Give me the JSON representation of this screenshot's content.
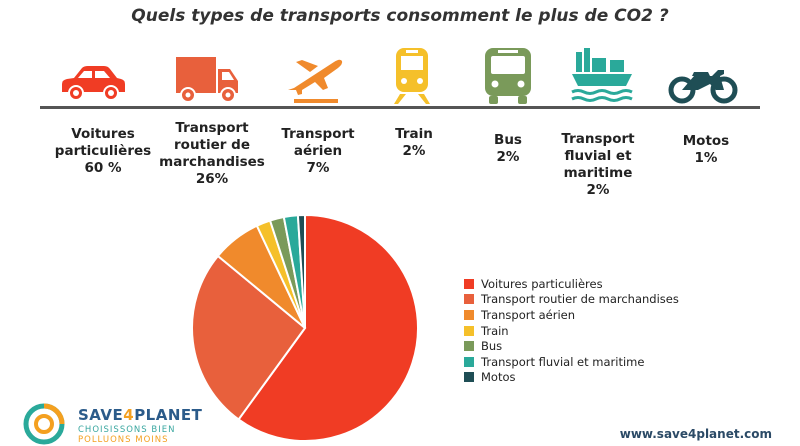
{
  "title": "Quels types de transports consomment le plus de CO2 ?",
  "categories": [
    {
      "lines": [
        "Voitures",
        "particulières",
        "60 %"
      ],
      "icon": "car-icon",
      "color": "#f03c24"
    },
    {
      "lines": [
        "Transport",
        "routier de",
        "marchandises",
        "26%"
      ],
      "icon": "truck-icon",
      "color": "#e8603c"
    },
    {
      "lines": [
        "Transport",
        "aérien",
        "7%"
      ],
      "icon": "airplane-icon",
      "color": "#f08a2c"
    },
    {
      "lines": [
        "Train",
        "2%"
      ],
      "icon": "train-icon",
      "color": "#f5c02a"
    },
    {
      "lines": [
        "Bus",
        "2%"
      ],
      "icon": "bus-icon",
      "color": "#7a9a5a"
    },
    {
      "lines": [
        "Transport",
        "fluvial et",
        "maritime",
        "2%"
      ],
      "icon": "ship-icon",
      "color": "#2aa99a"
    },
    {
      "lines": [
        "Motos",
        "1%"
      ],
      "icon": "motorcycle-icon",
      "color": "#1f4e55"
    }
  ],
  "chart_data": {
    "type": "pie",
    "categories": [
      "Voitures particulières",
      "Transport routier de marchandises",
      "Transport aérien",
      "Train",
      "Bus",
      "Transport fluvial et maritime",
      "Motos"
    ],
    "values": [
      60,
      26,
      7,
      2,
      2,
      2,
      1
    ],
    "colors": [
      "#f03c24",
      "#e8603c",
      "#f08a2c",
      "#f5c02a",
      "#7a9a5a",
      "#2aa99a",
      "#1f4e55"
    ],
    "legend_position": "right"
  },
  "footer": {
    "brand_a": "SAVE",
    "brand_b": "4",
    "brand_c": "PLANET",
    "tagline_1": "CHOISISSONS BIEN",
    "tagline_2": "POLLUONS MOINS",
    "website": "www.save4planet.com"
  }
}
